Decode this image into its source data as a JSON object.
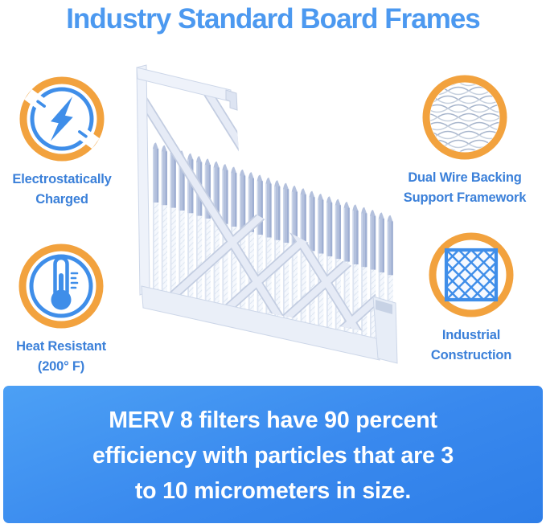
{
  "title": {
    "text": "Industry Standard Board Frames",
    "color": "#4C99F0"
  },
  "features": [
    {
      "icon": "lightning-icon",
      "label_lines": [
        "Electrostatically",
        "Charged"
      ]
    },
    {
      "icon": "wire-mesh-icon",
      "label_lines": [
        "Dual Wire Backing",
        "Support Framework"
      ]
    },
    {
      "icon": "thermometer-icon",
      "label_lines": [
        "Heat Resistant",
        "(200° F)"
      ]
    },
    {
      "icon": "lattice-icon",
      "label_lines": [
        "Industrial",
        "Construction"
      ]
    }
  ],
  "product_image": {
    "type": "pleated-air-filter-cutaway-render"
  },
  "filter_graphic": {
    "pleat_count": 28,
    "pleat_top_color": "#b4c1dd",
    "pleat_face_color": "#f5f8fd",
    "frame_color": "#eef2fa"
  },
  "banner": {
    "lines": [
      "MERV 8 filters have 90 percent",
      "efficiency with particles that are 3",
      "to 10 micrometers in size."
    ],
    "background_top": "#4CA0F5",
    "background_bottom": "#2E7EE8",
    "text_color": "#ffffff"
  },
  "colors": {
    "icon_blue": "#3F8EE9",
    "ring_orange": "#F2A23E",
    "label_blue": "#3B80D9"
  }
}
